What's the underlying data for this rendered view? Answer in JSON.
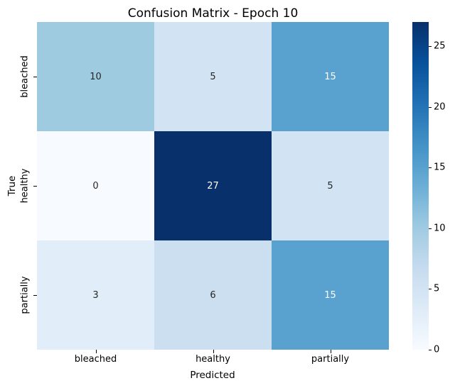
{
  "figure": {
    "title": "Confusion Matrix - Epoch 10",
    "background_color": "#ffffff",
    "text_color": "#000000"
  },
  "chart_data": {
    "type": "heatmap",
    "title": "Confusion Matrix - Epoch 10",
    "xlabel": "Predicted",
    "ylabel": "True",
    "x_tick_labels": [
      "bleached",
      "healthy",
      "partially"
    ],
    "y_tick_labels": [
      "bleached",
      "healthy",
      "partially"
    ],
    "rows": [
      {
        "true_label": "bleached",
        "values": [
          10,
          5,
          15
        ]
      },
      {
        "true_label": "healthy",
        "values": [
          0,
          27,
          5
        ]
      },
      {
        "true_label": "partially",
        "values": [
          3,
          6,
          15
        ]
      }
    ],
    "vmin": 0,
    "vmax": 27,
    "colormap": "Blues",
    "grid": false,
    "legend_position": "right-colorbar",
    "cells": [
      {
        "row": "bleached",
        "col": "bleached",
        "value": "10",
        "bg": "#9fcbe1",
        "fg": "#262626"
      },
      {
        "row": "bleached",
        "col": "healthy",
        "value": "5",
        "bg": "#d2e3f3",
        "fg": "#262626"
      },
      {
        "row": "bleached",
        "col": "partially",
        "value": "15",
        "bg": "#59a2cf",
        "fg": "#ffffff"
      },
      {
        "row": "healthy",
        "col": "bleached",
        "value": "0",
        "bg": "#f7fbff",
        "fg": "#262626"
      },
      {
        "row": "healthy",
        "col": "healthy",
        "value": "27",
        "bg": "#08306b",
        "fg": "#ffffff"
      },
      {
        "row": "healthy",
        "col": "partially",
        "value": "5",
        "bg": "#d2e3f3",
        "fg": "#262626"
      },
      {
        "row": "partially",
        "col": "bleached",
        "value": "3",
        "bg": "#e1edf8",
        "fg": "#262626"
      },
      {
        "row": "partially",
        "col": "healthy",
        "value": "6",
        "bg": "#cbdff1",
        "fg": "#262626"
      },
      {
        "row": "partially",
        "col": "partially",
        "value": "15",
        "bg": "#59a2cf",
        "fg": "#ffffff"
      }
    ],
    "colorbar": {
      "ticks": [
        "0",
        "5",
        "10",
        "15",
        "20",
        "25"
      ],
      "tick_values": [
        0,
        5,
        10,
        15,
        20,
        25
      ],
      "gradient_stops": [
        {
          "pos": 0.0,
          "color": "#f7fbff"
        },
        {
          "pos": 0.125,
          "color": "#deebf7"
        },
        {
          "pos": 0.25,
          "color": "#c6dbef"
        },
        {
          "pos": 0.375,
          "color": "#9ecae1"
        },
        {
          "pos": 0.5,
          "color": "#6baed6"
        },
        {
          "pos": 0.625,
          "color": "#4292c6"
        },
        {
          "pos": 0.75,
          "color": "#2171b5"
        },
        {
          "pos": 0.875,
          "color": "#08519c"
        },
        {
          "pos": 1.0,
          "color": "#08306b"
        }
      ]
    }
  }
}
